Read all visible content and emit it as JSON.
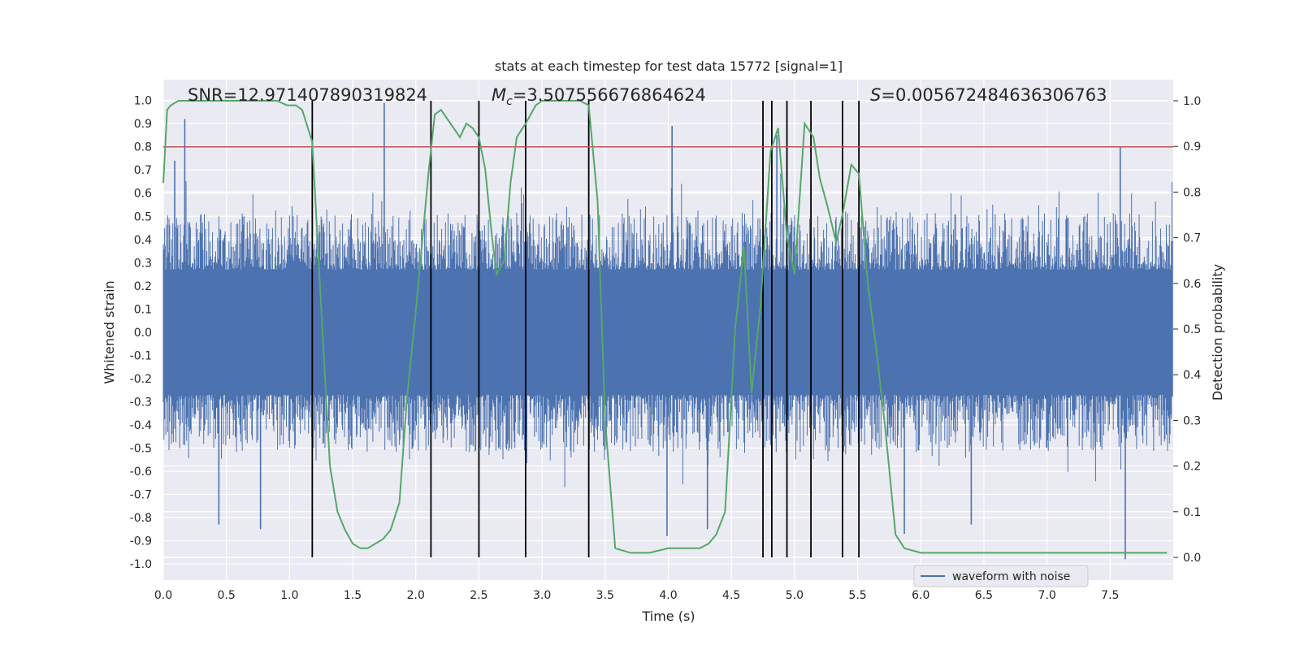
{
  "chart_data": {
    "type": "line",
    "title": "stats at each timestep for test data 15772 [signal=1]",
    "xlabel": "Time (s)",
    "ylabel_left": "Whitened strain",
    "ylabel_right": "Detection probability",
    "xlim": [
      0.0,
      8.0
    ],
    "ylim_left": [
      -1.07,
      1.09
    ],
    "ylim_right": [
      0.0,
      1.0
    ],
    "x_ticks": [
      "0.0",
      "0.5",
      "1.0",
      "1.5",
      "2.0",
      "2.5",
      "3.0",
      "3.5",
      "4.0",
      "4.5",
      "5.0",
      "5.5",
      "6.0",
      "6.5",
      "7.0",
      "7.5"
    ],
    "y_ticks_left": [
      "1.0",
      "0.9",
      "0.8",
      "0.7",
      "0.6",
      "0.5",
      "0.4",
      "0.3",
      "0.2",
      "0.1",
      "0.0",
      "-0.1",
      "-0.2",
      "-0.3",
      "-0.4",
      "-0.5",
      "-0.6",
      "-0.7",
      "-0.8",
      "-0.9",
      "-1.0"
    ],
    "y_ticks_right": [
      "1.0",
      "0.9",
      "0.8",
      "0.7",
      "0.6",
      "0.5",
      "0.4",
      "0.3",
      "0.2",
      "0.1",
      "0.0"
    ],
    "grid": true,
    "legend_placement": "bottom-right",
    "annotations": {
      "snr": "SNR=12.971407890319824",
      "mc_symbol": "M",
      "mc_sub": "c",
      "mc_value": "=3.507556676864624",
      "s_symbol": "S",
      "s_value": "=0.005672484636306763"
    },
    "threshold": {
      "value": 0.8,
      "axis": "left",
      "color": "#c44e52"
    },
    "vertical_lines_x": [
      1.18,
      2.12,
      2.5,
      2.87,
      3.37,
      4.75,
      4.82,
      4.94,
      5.13,
      5.38,
      5.51
    ],
    "series": [
      {
        "name": "waveform with noise",
        "color": "#4c72b0",
        "axis": "left",
        "kind": "noise-waveform",
        "typical_envelope": [
          -0.45,
          0.45
        ],
        "spikes": [
          [
            0.17,
            0.92
          ],
          [
            0.09,
            0.74
          ],
          [
            1.75,
            0.99
          ],
          [
            4.03,
            0.89
          ],
          [
            7.58,
            0.8
          ],
          [
            2.87,
            0.88
          ],
          [
            4.86,
            0.85
          ],
          [
            0.44,
            -0.83
          ],
          [
            0.77,
            -0.85
          ],
          [
            4.31,
            -0.85
          ],
          [
            7.62,
            -0.98
          ],
          [
            5.87,
            -0.87
          ],
          [
            6.4,
            -0.83
          ],
          [
            3.99,
            -0.88
          ]
        ]
      },
      {
        "name": "",
        "color": "#55a868",
        "axis": "right",
        "x": [
          0.0,
          0.03,
          0.06,
          0.12,
          0.2,
          0.3,
          0.4,
          0.5,
          0.6,
          0.7,
          0.8,
          0.9,
          0.98,
          1.05,
          1.1,
          1.18,
          1.25,
          1.32,
          1.38,
          1.44,
          1.5,
          1.56,
          1.62,
          1.68,
          1.74,
          1.8,
          1.87,
          1.93,
          2.0,
          2.06,
          2.1,
          2.15,
          2.2,
          2.25,
          2.3,
          2.35,
          2.4,
          2.45,
          2.5,
          2.55,
          2.6,
          2.64,
          2.7,
          2.75,
          2.8,
          2.87,
          2.95,
          3.0,
          3.1,
          3.2,
          3.3,
          3.37,
          3.44,
          3.5,
          3.58,
          3.7,
          3.85,
          4.0,
          4.06,
          4.12,
          4.18,
          4.25,
          4.32,
          4.38,
          4.45,
          4.53,
          4.6,
          4.66,
          4.73,
          4.81,
          4.87,
          4.94,
          5.0,
          5.08,
          5.15,
          5.2,
          5.26,
          5.33,
          5.38,
          5.45,
          5.51,
          5.58,
          5.65,
          5.72,
          5.8,
          5.87,
          6.0,
          6.2,
          6.4,
          6.6,
          6.8,
          7.0,
          7.2,
          7.4,
          7.6,
          7.8,
          7.95
        ],
        "y": [
          0.82,
          0.98,
          0.99,
          1.0,
          1.0,
          1.0,
          1.0,
          1.0,
          1.0,
          1.0,
          1.0,
          1.0,
          0.99,
          0.99,
          0.98,
          0.91,
          0.55,
          0.2,
          0.1,
          0.06,
          0.03,
          0.02,
          0.02,
          0.03,
          0.04,
          0.06,
          0.12,
          0.35,
          0.54,
          0.72,
          0.84,
          0.97,
          0.98,
          0.96,
          0.94,
          0.92,
          0.95,
          0.94,
          0.92,
          0.85,
          0.71,
          0.62,
          0.65,
          0.82,
          0.92,
          0.95,
          0.99,
          1.0,
          1.0,
          1.0,
          1.0,
          0.99,
          0.78,
          0.3,
          0.02,
          0.01,
          0.01,
          0.02,
          0.02,
          0.02,
          0.02,
          0.02,
          0.03,
          0.05,
          0.1,
          0.5,
          0.68,
          0.36,
          0.55,
          0.89,
          0.94,
          0.7,
          0.62,
          0.95,
          0.92,
          0.83,
          0.77,
          0.69,
          0.75,
          0.86,
          0.84,
          0.6,
          0.45,
          0.28,
          0.05,
          0.02,
          0.01,
          0.01,
          0.01,
          0.01,
          0.01,
          0.01,
          0.01,
          0.01,
          0.01,
          0.01,
          0.01
        ]
      }
    ]
  }
}
